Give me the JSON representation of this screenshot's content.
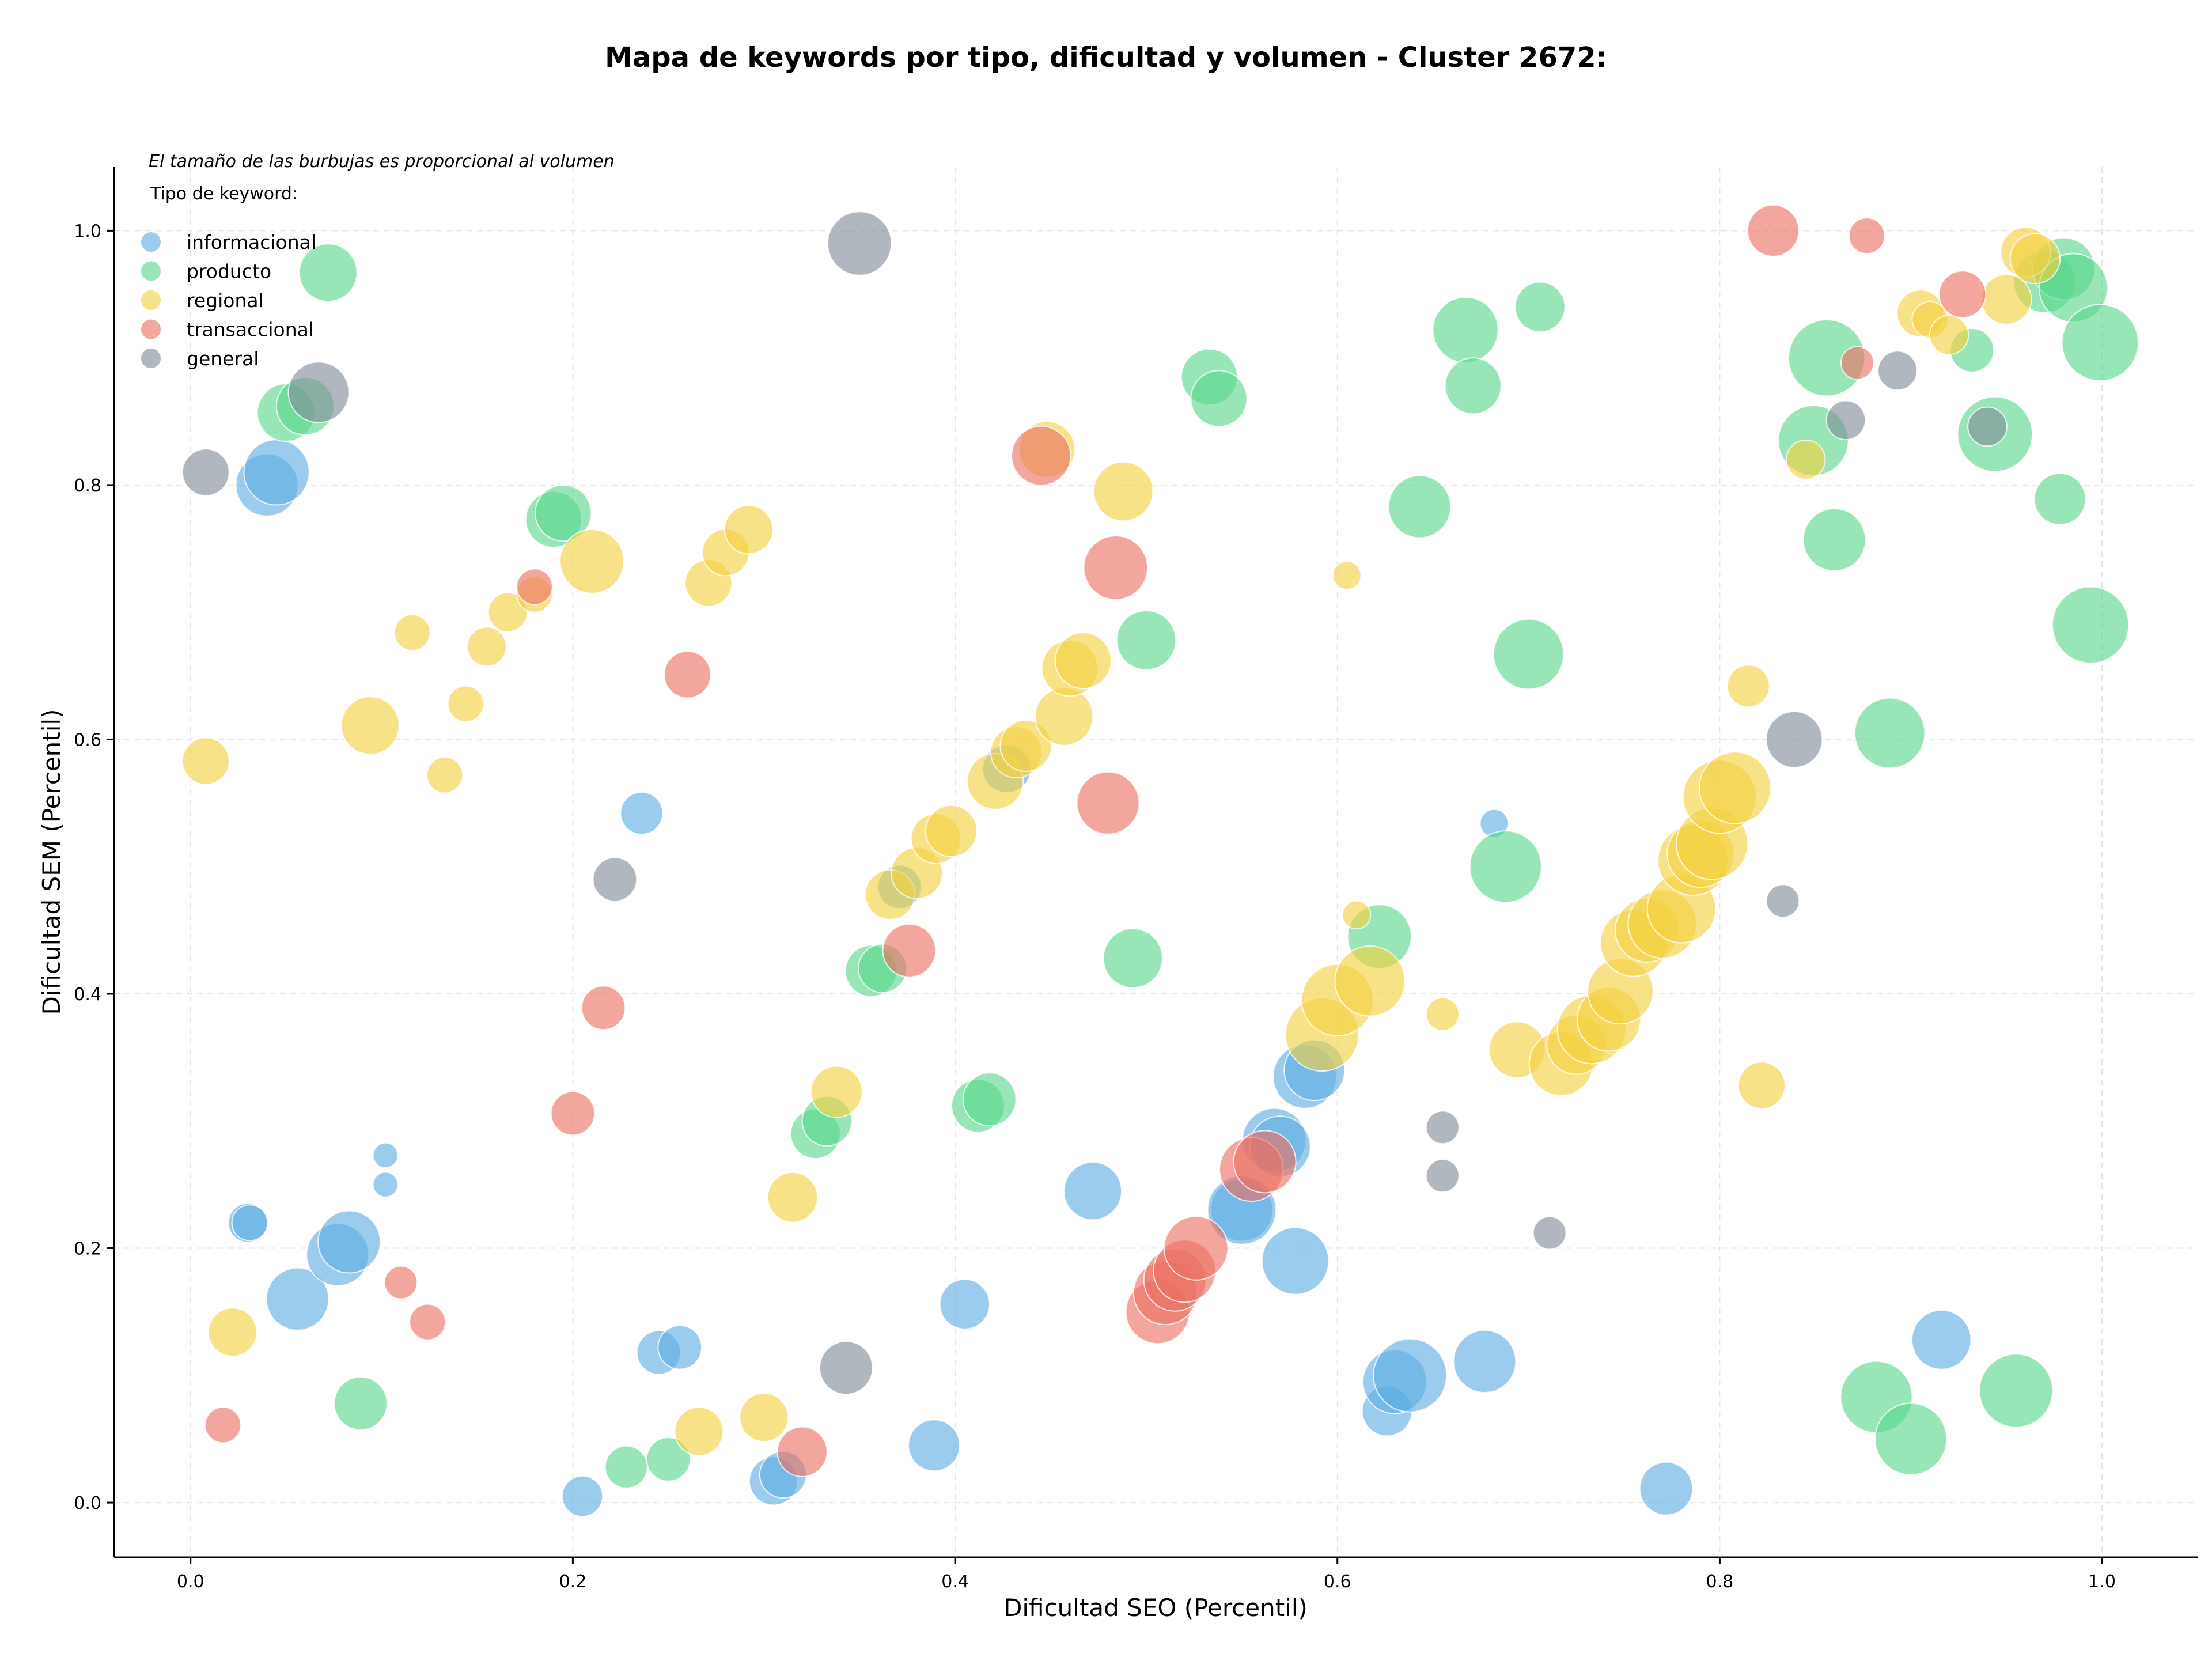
{
  "chart_data": {
    "type": "scatter",
    "title": "Mapa de keywords por tipo, dificultad y volumen - Cluster 2672:",
    "subtitle": "El tamaño de las burbujas es proporcional al volumen",
    "xlabel": "Dificultad SEO (Percentil)",
    "ylabel": "Dificultad SEM (Percentil)",
    "xlim": [
      -0.04,
      1.05
    ],
    "ylim": [
      -0.043,
      1.05
    ],
    "x_ticks": [
      "0.0",
      "0.2",
      "0.4",
      "0.6",
      "0.8",
      "1.0"
    ],
    "y_ticks": [
      "0.0",
      "0.2",
      "0.4",
      "0.6",
      "0.8",
      "1.0"
    ],
    "grid": true,
    "legend_position": "top-left",
    "legend_title": "Tipo de keyword:",
    "series": [
      {
        "name": "informacional",
        "color": "#5dade2",
        "points": [
          [
            0.04,
            0.8,
            4
          ],
          [
            0.045,
            0.81,
            4.2
          ],
          [
            0.056,
            0.16,
            4
          ],
          [
            0.077,
            0.195,
            4
          ],
          [
            0.083,
            0.205,
            4
          ],
          [
            0.03,
            0.22,
            2.5
          ],
          [
            0.031,
            0.22,
            2.3
          ],
          [
            0.102,
            0.273,
            1.6
          ],
          [
            0.102,
            0.25,
            1.6
          ],
          [
            0.236,
            0.542,
            2.7
          ],
          [
            0.205,
            0.005,
            2.6
          ],
          [
            0.245,
            0.118,
            2.8
          ],
          [
            0.256,
            0.122,
            2.8
          ],
          [
            0.305,
            0.017,
            3.1
          ],
          [
            0.31,
            0.022,
            3
          ],
          [
            0.389,
            0.045,
            3.3
          ],
          [
            0.371,
            0.484,
            2.8
          ],
          [
            0.405,
            0.156,
            3.2
          ],
          [
            0.427,
            0.577,
            3.1
          ],
          [
            0.472,
            0.245,
            3.7
          ],
          [
            0.55,
            0.23,
            4
          ],
          [
            0.55,
            0.23,
            4.4
          ],
          [
            0.567,
            0.285,
            4.1
          ],
          [
            0.57,
            0.28,
            3.9
          ],
          [
            0.578,
            0.19,
            4.3
          ],
          [
            0.583,
            0.335,
            4.1
          ],
          [
            0.588,
            0.34,
            3.9
          ],
          [
            0.626,
            0.072,
            3.2
          ],
          [
            0.63,
            0.095,
            4.1
          ],
          [
            0.638,
            0.1,
            4.7
          ],
          [
            0.677,
            0.111,
            4
          ],
          [
            0.682,
            0.534,
            1.8
          ],
          [
            0.772,
            0.011,
            3.4
          ],
          [
            0.916,
            0.128,
            3.8
          ]
        ]
      },
      {
        "name": "producto",
        "color": "#58d68d",
        "points": [
          [
            0.072,
            0.967,
            3.7
          ],
          [
            0.05,
            0.857,
            3.7
          ],
          [
            0.06,
            0.862,
            3.7
          ],
          [
            0.19,
            0.773,
            3.6
          ],
          [
            0.195,
            0.778,
            3.6
          ],
          [
            0.089,
            0.078,
            3.4
          ],
          [
            0.228,
            0.028,
            2.7
          ],
          [
            0.25,
            0.034,
            2.8
          ],
          [
            0.327,
            0.29,
            3.2
          ],
          [
            0.333,
            0.3,
            3.2
          ],
          [
            0.356,
            0.418,
            3.3
          ],
          [
            0.362,
            0.42,
            3.1
          ],
          [
            0.412,
            0.312,
            3.4
          ],
          [
            0.418,
            0.317,
            3.4
          ],
          [
            0.493,
            0.428,
            3.8
          ],
          [
            0.5,
            0.678,
            3.8
          ],
          [
            0.533,
            0.885,
            3.6
          ],
          [
            0.538,
            0.868,
            3.6
          ],
          [
            0.622,
            0.445,
            4.1
          ],
          [
            0.643,
            0.783,
            4
          ],
          [
            0.667,
            0.922,
            4.2
          ],
          [
            0.671,
            0.878,
            3.6
          ],
          [
            0.688,
            0.5,
            4.6
          ],
          [
            0.7,
            0.667,
            4.5
          ],
          [
            0.706,
            0.94,
            3.2
          ],
          [
            0.849,
            0.835,
            4.5
          ],
          [
            0.856,
            0.9,
            4.9
          ],
          [
            0.86,
            0.757,
            4
          ],
          [
            0.889,
            0.605,
            4.5
          ],
          [
            0.882,
            0.083,
            4.6
          ],
          [
            0.9,
            0.05,
            4.6
          ],
          [
            0.932,
            0.906,
            2.8
          ],
          [
            0.944,
            0.84,
            4.8
          ],
          [
            0.955,
            0.088,
            4.7
          ],
          [
            0.97,
            0.96,
            4
          ],
          [
            0.98,
            0.97,
            4
          ],
          [
            0.985,
            0.955,
            4.4
          ],
          [
            0.978,
            0.789,
            3.3
          ],
          [
            0.999,
            0.912,
            4.9
          ],
          [
            0.994,
            0.69,
            4.9
          ]
        ]
      },
      {
        "name": "regional",
        "color": "#f4d03f",
        "points": [
          [
            0.008,
            0.583,
            3
          ],
          [
            0.022,
            0.134,
            3.1
          ],
          [
            0.094,
            0.611,
            3.7
          ],
          [
            0.116,
            0.684,
            2.3
          ],
          [
            0.133,
            0.572,
            2.3
          ],
          [
            0.144,
            0.628,
            2.3
          ],
          [
            0.155,
            0.673,
            2.5
          ],
          [
            0.166,
            0.7,
            2.5
          ],
          [
            0.18,
            0.714,
            2.3
          ],
          [
            0.21,
            0.74,
            4.1
          ],
          [
            0.266,
            0.056,
            3.1
          ],
          [
            0.271,
            0.723,
            3
          ],
          [
            0.28,
            0.747,
            3
          ],
          [
            0.292,
            0.765,
            3.1
          ],
          [
            0.3,
            0.067,
            3.1
          ],
          [
            0.315,
            0.24,
            3.2
          ],
          [
            0.338,
            0.323,
            3.3
          ],
          [
            0.366,
            0.478,
            3.2
          ],
          [
            0.38,
            0.495,
            3.3
          ],
          [
            0.39,
            0.522,
            3.2
          ],
          [
            0.398,
            0.528,
            3.3
          ],
          [
            0.421,
            0.567,
            3.6
          ],
          [
            0.432,
            0.59,
            3.3
          ],
          [
            0.437,
            0.595,
            3.3
          ],
          [
            0.448,
            0.828,
            3.6
          ],
          [
            0.457,
            0.618,
            3.7
          ],
          [
            0.46,
            0.656,
            3.6
          ],
          [
            0.467,
            0.662,
            3.6
          ],
          [
            0.488,
            0.795,
            3.8
          ],
          [
            0.605,
            0.729,
            1.8
          ],
          [
            0.61,
            0.462,
            1.8
          ],
          [
            0.592,
            0.368,
            4.7
          ],
          [
            0.6,
            0.395,
            4.6
          ],
          [
            0.617,
            0.41,
            4.5
          ],
          [
            0.655,
            0.384,
            2.1
          ],
          [
            0.694,
            0.356,
            3.6
          ],
          [
            0.717,
            0.345,
            4.1
          ],
          [
            0.725,
            0.36,
            3.8
          ],
          [
            0.733,
            0.372,
            4.4
          ],
          [
            0.742,
            0.38,
            4.1
          ],
          [
            0.748,
            0.402,
            4.2
          ],
          [
            0.755,
            0.44,
            4.3
          ],
          [
            0.762,
            0.45,
            4.1
          ],
          [
            0.77,
            0.455,
            4.4
          ],
          [
            0.78,
            0.467,
            4.4
          ],
          [
            0.786,
            0.505,
            4.5
          ],
          [
            0.79,
            0.51,
            4.3
          ],
          [
            0.796,
            0.518,
            4.6
          ],
          [
            0.8,
            0.555,
            4.7
          ],
          [
            0.808,
            0.562,
            4.6
          ],
          [
            0.815,
            0.642,
            2.7
          ],
          [
            0.822,
            0.328,
            3
          ],
          [
            0.845,
            0.82,
            2.5
          ],
          [
            0.905,
            0.935,
            3
          ],
          [
            0.91,
            0.93,
            2.3
          ],
          [
            0.92,
            0.918,
            2.5
          ],
          [
            0.95,
            0.946,
            3.2
          ],
          [
            0.96,
            0.983,
            3.2
          ],
          [
            0.965,
            0.978,
            3.2
          ]
        ]
      },
      {
        "name": "transaccional",
        "color": "#ec7063",
        "points": [
          [
            0.017,
            0.061,
            2.3
          ],
          [
            0.11,
            0.173,
            2.1
          ],
          [
            0.124,
            0.142,
            2.3
          ],
          [
            0.18,
            0.72,
            2.3
          ],
          [
            0.2,
            0.306,
            2.8
          ],
          [
            0.216,
            0.389,
            2.8
          ],
          [
            0.26,
            0.651,
            3
          ],
          [
            0.32,
            0.04,
            3.2
          ],
          [
            0.376,
            0.434,
            3.4
          ],
          [
            0.445,
            0.823,
            3.8
          ],
          [
            0.48,
            0.55,
            4
          ],
          [
            0.484,
            0.735,
            4.1
          ],
          [
            0.506,
            0.15,
            4.1
          ],
          [
            0.51,
            0.165,
            4.1
          ],
          [
            0.515,
            0.175,
            4
          ],
          [
            0.52,
            0.182,
            4
          ],
          [
            0.526,
            0.2,
            4.1
          ],
          [
            0.555,
            0.262,
            4.1
          ],
          [
            0.562,
            0.268,
            4
          ],
          [
            0.828,
            1.0,
            3.3
          ],
          [
            0.877,
            0.996,
            2.3
          ],
          [
            0.872,
            0.896,
            2.1
          ],
          [
            0.927,
            0.95,
            3
          ]
        ]
      },
      {
        "name": "general",
        "color": "#808b96",
        "points": [
          [
            0.008,
            0.81,
            3
          ],
          [
            0.067,
            0.873,
            3.9
          ],
          [
            0.222,
            0.49,
            2.8
          ],
          [
            0.343,
            0.106,
            3.4
          ],
          [
            0.35,
            0.99,
            4.1
          ],
          [
            0.655,
            0.295,
            2.1
          ],
          [
            0.655,
            0.257,
            2.1
          ],
          [
            0.711,
            0.212,
            2.1
          ],
          [
            0.833,
            0.473,
            2.1
          ],
          [
            0.839,
            0.6,
            3.6
          ],
          [
            0.866,
            0.851,
            2.5
          ],
          [
            0.893,
            0.89,
            2.5
          ],
          [
            0.94,
            0.846,
            2.5
          ]
        ]
      }
    ]
  }
}
